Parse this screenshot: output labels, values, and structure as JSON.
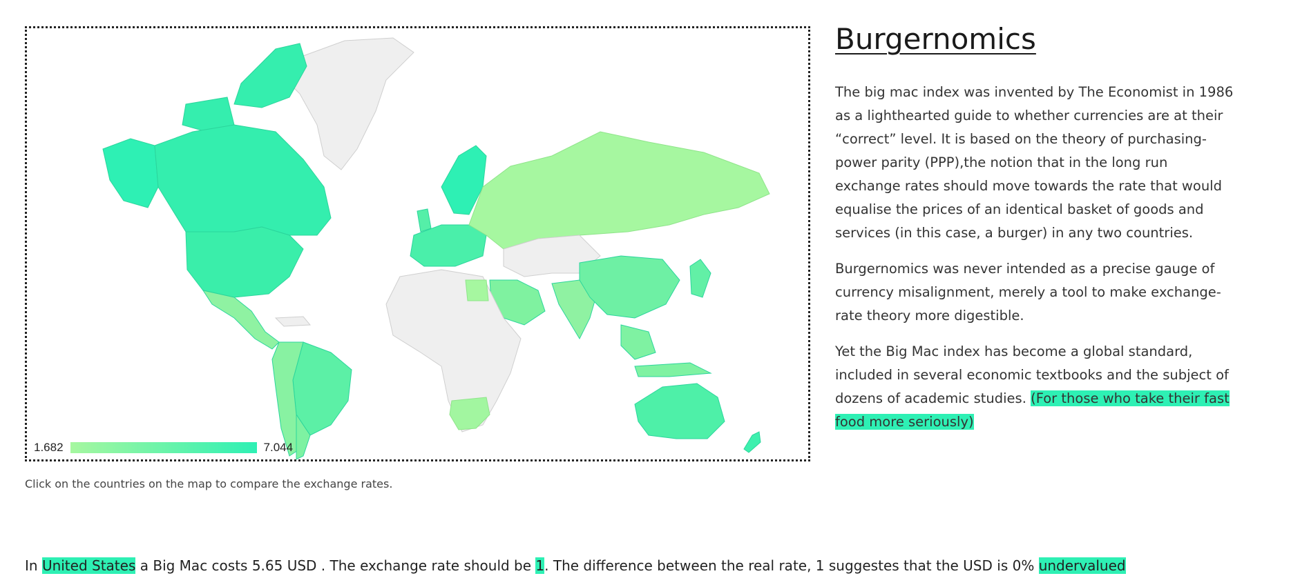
{
  "map": {
    "legend_min": "1.682",
    "legend_max": "7.044",
    "colors": {
      "low": "#a6f7a0",
      "high": "#2ef0b4",
      "no_data": "#efefef",
      "border": "#cfcfcf"
    },
    "caption": "Click on the countries on the map to compare the exchange rates."
  },
  "article": {
    "title": "Burgernomics",
    "p1": "The big mac index was invented by The Economist in 1986 as a lighthearted guide to whether currencies are at their “correct” level. It is based on the theory of purchasing-power parity (PPP),the notion that in the long run exchange rates should move towards the rate that would equalise the prices of an identical basket of goods and services (in this case, a burger) in any two countries.",
    "p2": "Burgernomics was never intended as a precise gauge of currency misalignment, merely a tool to make exchange-rate theory more digestible.",
    "p3": "Yet the Big Mac index has become a global standard, included in several economic textbooks and the subject of dozens of academic studies.",
    "p3_link": "(For those who take their fast food more seriously)"
  },
  "summary": {
    "t1": "In ",
    "country": "United States",
    "t2": " a Big Mac costs 5.65 USD . The exchange rate should be ",
    "rate": "1",
    "t3": ". The difference between the real rate, 1 suggestes that the USD is 0% ",
    "verdict": "undervalued"
  }
}
